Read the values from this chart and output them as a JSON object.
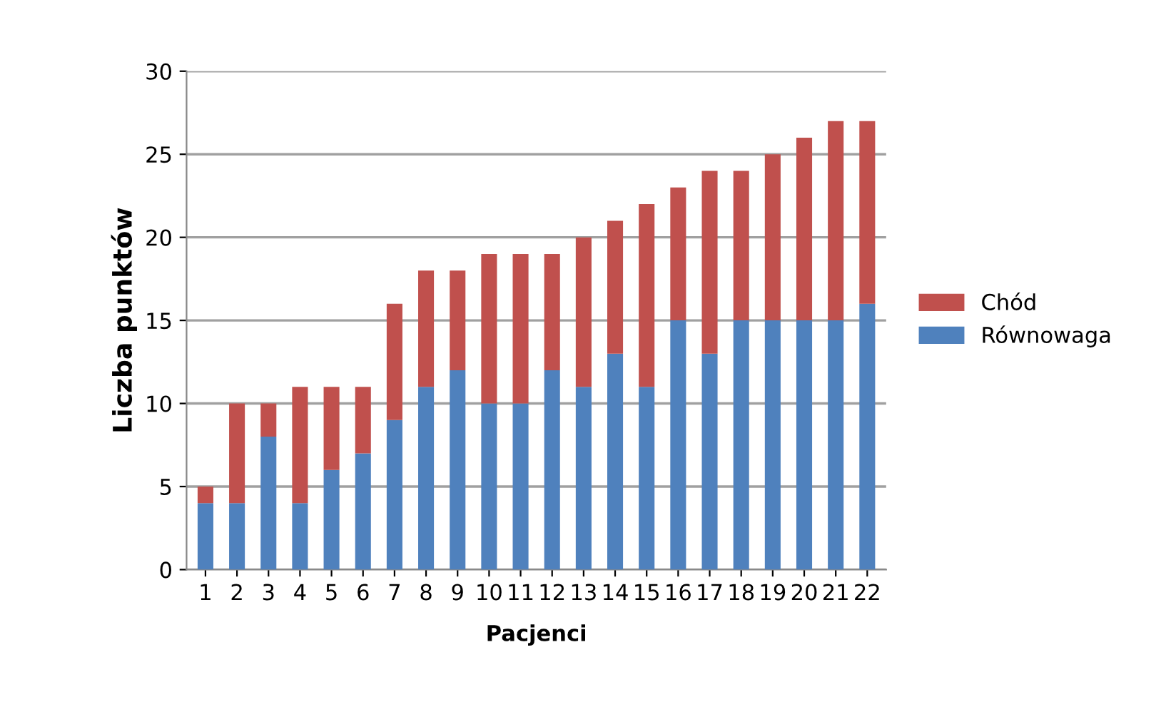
{
  "chart_data": {
    "type": "bar",
    "stacked": true,
    "xlabel": "Pacjenci",
    "ylabel": "Liczba punktów",
    "categories": [
      "1",
      "2",
      "3",
      "4",
      "5",
      "6",
      "7",
      "8",
      "9",
      "10",
      "11",
      "12",
      "13",
      "14",
      "15",
      "16",
      "17",
      "18",
      "19",
      "20",
      "21",
      "22"
    ],
    "series": [
      {
        "name": "Równowaga",
        "color": "#4f81bd",
        "values": [
          4,
          4,
          8,
          4,
          6,
          7,
          9,
          11,
          12,
          10,
          10,
          12,
          11,
          13,
          11,
          15,
          13,
          15,
          15,
          15,
          15,
          16
        ]
      },
      {
        "name": "Chód",
        "color": "#c0504d",
        "values": [
          1,
          6,
          2,
          7,
          5,
          4,
          7,
          7,
          6,
          9,
          9,
          7,
          9,
          8,
          11,
          8,
          11,
          9,
          10,
          11,
          12,
          11
        ]
      }
    ],
    "ylim": [
      0,
      30
    ],
    "yticks": [
      0,
      5,
      10,
      15,
      20,
      25,
      30
    ],
    "grid": "y",
    "legend": "right"
  }
}
